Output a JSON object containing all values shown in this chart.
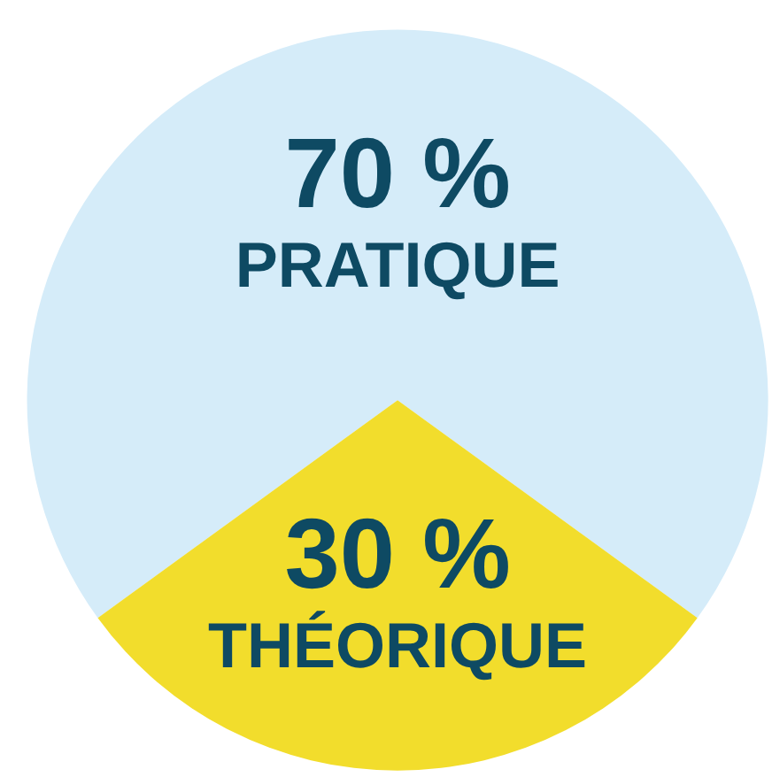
{
  "chart_data": {
    "type": "pie",
    "categories": [
      "PRATIQUE",
      "THÉORIQUE"
    ],
    "values": [
      70,
      30
    ],
    "value_labels": [
      "70 %",
      "30 %"
    ],
    "colors": [
      "#d5ecf9",
      "#f2dd2c"
    ],
    "legend": false
  }
}
